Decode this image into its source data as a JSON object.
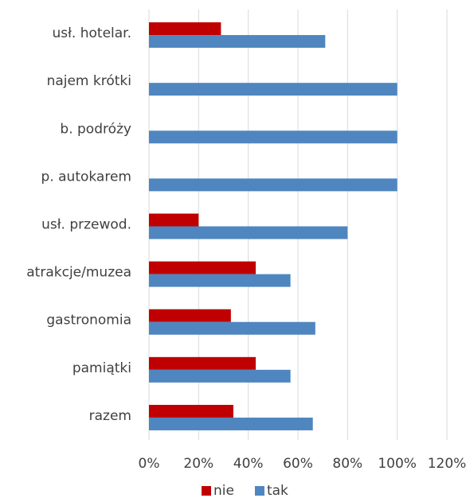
{
  "chart_data": {
    "type": "bar",
    "orientation": "horizontal",
    "categories": [
      "usł. hotelar.",
      "najem krótki",
      "b. podróży",
      "p. autokarem",
      "usł. przewod.",
      "atrakcje/muzea",
      "gastronomia",
      "pamiątki",
      "razem"
    ],
    "series": [
      {
        "name": "nie",
        "color": "#c00000",
        "values": [
          29,
          0,
          0,
          0,
          20,
          43,
          33,
          43,
          34
        ]
      },
      {
        "name": "tak",
        "color": "#4f86bf",
        "values": [
          71,
          100,
          100,
          100,
          80,
          57,
          67,
          57,
          66
        ]
      }
    ],
    "xlim": [
      0,
      120
    ],
    "xticks": [
      {
        "value": 0,
        "label": "0%"
      },
      {
        "value": 20,
        "label": "20%"
      },
      {
        "value": 40,
        "label": "40%"
      },
      {
        "value": 60,
        "label": "60%"
      },
      {
        "value": 80,
        "label": "80%"
      },
      {
        "value": 100,
        "label": "100%"
      },
      {
        "value": 120,
        "label": "120%"
      }
    ],
    "grid": true,
    "legend": "bottom"
  }
}
